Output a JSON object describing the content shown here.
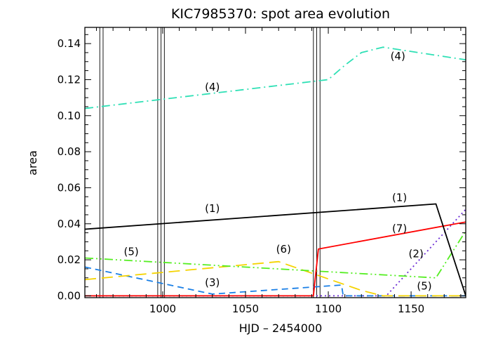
{
  "chart_data": {
    "type": "line",
    "title": "KIC7985370: spot area evolution",
    "xlabel": "HJD – 2454000",
    "ylabel": "area",
    "xlim": [
      953,
      1183
    ],
    "ylim": [
      -0.001,
      0.149
    ],
    "xticks": [
      1000,
      1050,
      1100,
      1150
    ],
    "yticks": [
      0.0,
      0.02,
      0.04,
      0.06,
      0.08,
      0.1,
      0.12,
      0.14
    ],
    "ytick_labels": [
      "0.00",
      "0.02",
      "0.04",
      "0.06",
      "0.08",
      "0.10",
      "0.12",
      "0.14"
    ],
    "vertical_lines": [
      962,
      964,
      997,
      999,
      1001,
      1091,
      1093,
      1095
    ],
    "series": [
      {
        "name": "(1)",
        "color": "#000000",
        "dash": "solid",
        "x": [
          953,
          1165,
          1183
        ],
        "y": [
          0.037,
          0.051,
          0.0
        ]
      },
      {
        "name": "(4)",
        "color": "#2ee0b5",
        "dash": "dashdot",
        "x": [
          953,
          1100,
          1110,
          1120,
          1133,
          1183
        ],
        "y": [
          0.104,
          0.12,
          0.128,
          0.135,
          0.138,
          0.131
        ]
      },
      {
        "name": "(7)",
        "color": "#ff0000",
        "dash": "solid",
        "x": [
          953,
          1091,
          1094,
          1183
        ],
        "y": [
          0.0,
          0.0,
          0.026,
          0.041
        ]
      },
      {
        "name": "(5)",
        "color": "#55ee22",
        "dash": "dashdotdot",
        "x": [
          953,
          1165,
          1183
        ],
        "y": [
          0.021,
          0.01,
          0.036
        ]
      },
      {
        "name": "(6)",
        "color": "#f5d300",
        "dash": "longdash",
        "x": [
          953,
          1070,
          1120,
          1133,
          1183
        ],
        "y": [
          0.009,
          0.019,
          0.003,
          0.0,
          0.0
        ]
      },
      {
        "name": "(3)",
        "color": "#1a7fe6",
        "dash": "dash",
        "x": [
          953,
          1030,
          1108,
          1109,
          1183
        ],
        "y": [
          0.016,
          0.001,
          0.006,
          0.0,
          0.0
        ]
      },
      {
        "name": "(2)",
        "color": "#6a2bd4",
        "dash": "dot",
        "x": [
          953,
          1135,
          1183
        ],
        "y": [
          0.0,
          0.0,
          0.048
        ]
      }
    ],
    "annotations": [
      {
        "text": "(4)",
        "x": 1030,
        "y": 0.114
      },
      {
        "text": "(4)",
        "x": 1142,
        "y": 0.131
      },
      {
        "text": "(1)",
        "x": 1030,
        "y": 0.0465
      },
      {
        "text": "(1)",
        "x": 1143,
        "y": 0.0525
      },
      {
        "text": "(7)",
        "x": 1143,
        "y": 0.0355
      },
      {
        "text": "(6)",
        "x": 1073,
        "y": 0.024
      },
      {
        "text": "(5)",
        "x": 981,
        "y": 0.0225
      },
      {
        "text": "(2)",
        "x": 1153,
        "y": 0.0215
      },
      {
        "text": "(3)",
        "x": 1030,
        "y": 0.0055
      },
      {
        "text": "(5)",
        "x": 1158,
        "y": 0.0035
      }
    ]
  }
}
